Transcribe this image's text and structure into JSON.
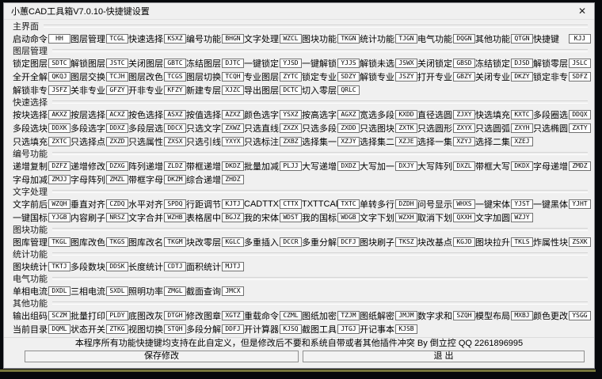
{
  "window": {
    "title": "小蕙CAD工具箱V7.0.10-快捷键设置",
    "close": "✕"
  },
  "sections": [
    {
      "title": "主界面",
      "rows": [
        [
          {
            "label": "启动命令",
            "value": "HH"
          },
          {
            "label": "图层管理",
            "value": "TCGL"
          },
          {
            "label": "快速选择",
            "value": "KSXZ"
          },
          {
            "label": "编号功能",
            "value": "BHGN"
          },
          {
            "label": "文字处理",
            "value": "WZCL"
          },
          {
            "label": "图块功能",
            "value": "TKGN"
          },
          {
            "label": "统计功能",
            "value": "TJGN"
          },
          {
            "label": "电气功能",
            "value": "DQGN"
          },
          {
            "label": "其他功能",
            "value": "QTGN"
          },
          {
            "label": "快捷键",
            "value": "KJJ"
          }
        ]
      ]
    },
    {
      "title": "图层管理",
      "rows": [
        [
          {
            "label": "锁定图层",
            "value": "SDTC"
          },
          {
            "label": "解锁图层",
            "value": "JSTC"
          },
          {
            "label": "关闭图层",
            "value": "GBTC"
          },
          {
            "label": "冻结图层",
            "value": "DJTC"
          },
          {
            "label": "一键锁定",
            "value": "YJSD"
          },
          {
            "label": "一键解锁",
            "value": "YJJS"
          },
          {
            "label": "解锁未选",
            "value": "JSWX"
          },
          {
            "label": "关闭锁定",
            "value": "GBSD"
          },
          {
            "label": "冻结锁定",
            "value": "DJSD"
          },
          {
            "label": "解锁零层",
            "value": "JSLC"
          }
        ],
        [
          {
            "label": "全开全解",
            "value": "QKQJ"
          },
          {
            "label": "图层交换",
            "value": "TCJH"
          },
          {
            "label": "图层改色",
            "value": "TCGS"
          },
          {
            "label": "图层切换",
            "value": "TCQH"
          },
          {
            "label": "专业图层",
            "value": "ZYTC"
          },
          {
            "label": "锁定专业",
            "value": "SDZY"
          },
          {
            "label": "解锁专业",
            "value": "JSZY"
          },
          {
            "label": "打开专业",
            "value": "GBZY"
          },
          {
            "label": "关闭专业",
            "value": "DKZY"
          },
          {
            "label": "锁定非专",
            "value": "SDFZ"
          }
        ],
        [
          {
            "label": "解锁非专",
            "value": "JSFZ"
          },
          {
            "label": "关非专业",
            "value": "GFZY"
          },
          {
            "label": "开非专业",
            "value": "KFZY"
          },
          {
            "label": "新建专层",
            "value": "XJZC"
          },
          {
            "label": "导出图层",
            "value": "DCTC"
          },
          {
            "label": "切入零层",
            "value": "QRLC"
          }
        ]
      ]
    },
    {
      "title": "快速选择",
      "rows": [
        [
          {
            "label": "按块选择",
            "value": "AKXZ"
          },
          {
            "label": "按层选择",
            "value": "ACXZ"
          },
          {
            "label": "按色选择",
            "value": "ASXZ"
          },
          {
            "label": "按值选择",
            "value": "AZXZ"
          },
          {
            "label": "颜色选字",
            "value": "YSXZ"
          },
          {
            "label": "按高选字",
            "value": "AGXZ"
          },
          {
            "label": "宽选多段",
            "value": "KXDD"
          },
          {
            "label": "直径选圆",
            "value": "ZJXY"
          },
          {
            "label": "快选填充",
            "value": "KXTC"
          },
          {
            "label": "多段圈选",
            "value": "DDQX"
          }
        ],
        [
          {
            "label": "多段选块",
            "value": "DDXK"
          },
          {
            "label": "多段选字",
            "value": "DDXZ"
          },
          {
            "label": "多段层选",
            "value": "DDCX"
          },
          {
            "label": "只选文字",
            "value": "ZXWZ"
          },
          {
            "label": "只选直线",
            "value": "ZXZX"
          },
          {
            "label": "只选多段",
            "value": "ZXDD"
          },
          {
            "label": "只选图块",
            "value": "ZXTK"
          },
          {
            "label": "只选圆形",
            "value": "ZXYX"
          },
          {
            "label": "只选圆弧",
            "value": "ZXYH"
          },
          {
            "label": "只选椭圆",
            "value": "ZXTY"
          }
        ],
        [
          {
            "label": "只选填充",
            "value": "ZXTC"
          },
          {
            "label": "只选择点",
            "value": "ZXZD"
          },
          {
            "label": "只选属性",
            "value": "ZXSX"
          },
          {
            "label": "只选引线",
            "value": "YXYX"
          },
          {
            "label": "只选标注",
            "value": "ZXBZ"
          },
          {
            "label": "选择集一",
            "value": "XZJY"
          },
          {
            "label": "选择集二",
            "value": "XZJE"
          },
          {
            "label": "选择一集",
            "value": "XZYJ"
          },
          {
            "label": "选择二集",
            "value": "XZEJ"
          }
        ]
      ]
    },
    {
      "title": "编号功能",
      "rows": [
        [
          {
            "label": "递增复制",
            "value": "DZFZ"
          },
          {
            "label": "递增修改",
            "value": "DZXG"
          },
          {
            "label": "阵列递增",
            "value": "ZLDZ"
          },
          {
            "label": "带框递增",
            "value": "DKDZ"
          },
          {
            "label": "批量加减",
            "value": "PLJJ"
          },
          {
            "label": "大写递增",
            "value": "DXDZ"
          },
          {
            "label": "大写加一",
            "value": "DXJY"
          },
          {
            "label": "大写阵列",
            "value": "DXZL"
          },
          {
            "label": "带框大写",
            "value": "DKDX"
          },
          {
            "label": "字母递增",
            "value": "ZMDZ"
          }
        ],
        [
          {
            "label": "字母加减",
            "value": "ZMJJ"
          },
          {
            "label": "字母阵列",
            "value": "ZMZL"
          },
          {
            "label": "带框字母",
            "value": "DKZM"
          },
          {
            "label": "综合递增",
            "value": "ZHDZ"
          }
        ]
      ]
    },
    {
      "title": "文字处理",
      "rows": [
        [
          {
            "label": "文字前后",
            "value": "WZQH"
          },
          {
            "label": "垂直对齐",
            "value": "CZDQ"
          },
          {
            "label": "水平对齐",
            "value": "SPDQ"
          },
          {
            "label": "行距调节",
            "value": "KJTJ"
          },
          {
            "label": "CADTTXT",
            "value": "CTTX"
          },
          {
            "label": "TXTTCAD",
            "value": "TXTC"
          },
          {
            "label": "单转多行",
            "value": "DZDH"
          },
          {
            "label": "问号显示",
            "value": "WHXS"
          },
          {
            "label": "一键宋体",
            "value": "YJST"
          },
          {
            "label": "一键黑体",
            "value": "YJHT"
          }
        ],
        [
          {
            "label": "一键国标",
            "value": "YJGB"
          },
          {
            "label": "内容刷子",
            "value": "NRSZ"
          },
          {
            "label": "文字合并",
            "value": "WZHB"
          },
          {
            "label": "表格居中",
            "value": "BGJZ"
          },
          {
            "label": "我的宋体",
            "value": "WDST"
          },
          {
            "label": "我的国标",
            "value": "WDGB"
          },
          {
            "label": "文字下划",
            "value": "WZXH"
          },
          {
            "label": "取消下划",
            "value": "QXXH"
          },
          {
            "label": "文字加圆",
            "value": "WZJY"
          }
        ]
      ]
    },
    {
      "title": "图块功能",
      "rows": [
        [
          {
            "label": "图库管理",
            "value": "TKGL"
          },
          {
            "label": "图库改色",
            "value": "TKGS"
          },
          {
            "label": "图库改名",
            "value": "TKGM"
          },
          {
            "label": "块改零层",
            "value": "KGLC"
          },
          {
            "label": "多重插入",
            "value": "DCCR"
          },
          {
            "label": "多重分解",
            "value": "DCFJ"
          },
          {
            "label": "图块刷子",
            "value": "TKSZ"
          },
          {
            "label": "块改基点",
            "value": "KGJD"
          },
          {
            "label": "图块拉升",
            "value": "TKLS"
          },
          {
            "label": "炸属性块",
            "value": "ZSXK"
          }
        ]
      ]
    },
    {
      "title": "统计功能",
      "rows": [
        [
          {
            "label": "图块统计",
            "value": "TKTJ"
          },
          {
            "label": "多段数块",
            "value": "DDSK"
          },
          {
            "label": "长度统计",
            "value": "CDTJ"
          },
          {
            "label": "面积统计",
            "value": "MJTJ"
          }
        ]
      ]
    },
    {
      "title": "电气功能",
      "rows": [
        [
          {
            "label": "单相电流",
            "value": "DXDL"
          },
          {
            "label": "三相电流",
            "value": "SXDL"
          },
          {
            "label": "照明功率",
            "value": "ZMGL"
          },
          {
            "label": "截面查询",
            "value": "JMCX"
          }
        ]
      ]
    },
    {
      "title": "其他功能",
      "rows": [
        [
          {
            "label": "输出组码",
            "value": "SCZM"
          },
          {
            "label": "批量打印",
            "value": "PLDY"
          },
          {
            "label": "底图改灰",
            "value": "DTGH"
          },
          {
            "label": "修改图章",
            "value": "XGTZ"
          },
          {
            "label": "重载命令",
            "value": "CZML"
          },
          {
            "label": "图纸加密",
            "value": "TZJM"
          },
          {
            "label": "图纸解密",
            "value": "JMJM"
          },
          {
            "label": "数字求和",
            "value": "SZQH"
          },
          {
            "label": "模型布局",
            "value": "MXBJ"
          },
          {
            "label": "颜色更改",
            "value": "YSGG"
          }
        ],
        [
          {
            "label": "当前目录",
            "value": "DQML"
          },
          {
            "label": "状态开关",
            "value": "ZTKG"
          },
          {
            "label": "视图切换",
            "value": "STQH"
          },
          {
            "label": "多段分解",
            "value": "DDFJ"
          },
          {
            "label": "开计算器",
            "value": "KJSQ"
          },
          {
            "label": "截图工具",
            "value": "JTGJ"
          },
          {
            "label": "开记事本",
            "value": "KJSB"
          }
        ]
      ]
    }
  ],
  "footer": {
    "note": "本程序所有功能快捷键均支持在此自定义，但是修改后不要和系统自带或者其他插件冲突  By 倒立控 QQ 2261896995",
    "save_label": "保存修改",
    "exit_label": "退  出"
  },
  "colors": {
    "dialog_bg": "#f0f0f0",
    "input_border": "#717171",
    "edge_band": "#77773d"
  }
}
